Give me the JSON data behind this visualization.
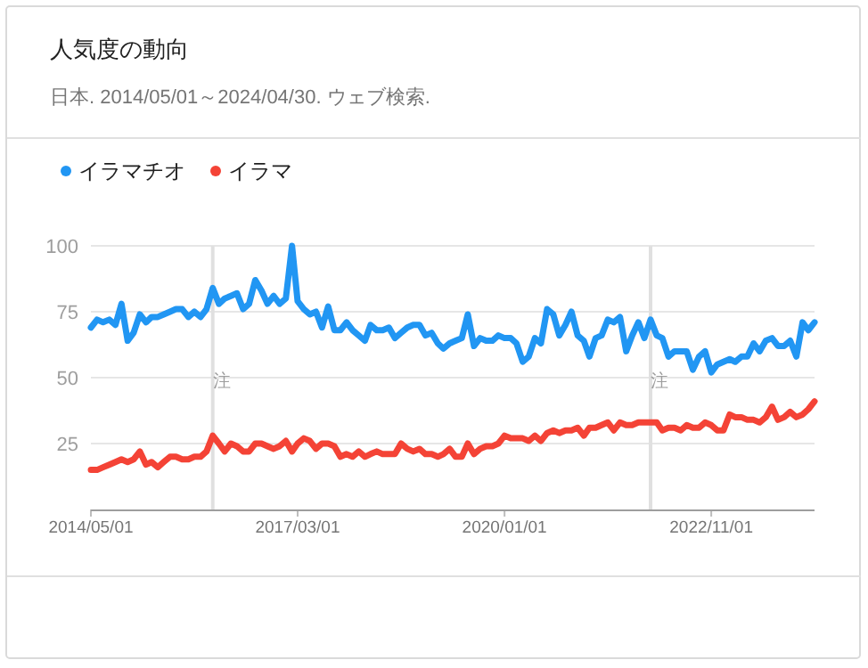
{
  "chart_data": {
    "type": "line",
    "title": "人気度の動向",
    "subtitle": "日本. 2014/05/01～2024/04/30. ウェブ検索.",
    "x": [
      "2014-05",
      "2014-06",
      "2014-07",
      "2014-08",
      "2014-09",
      "2014-10",
      "2014-11",
      "2014-12",
      "2015-01",
      "2015-02",
      "2015-03",
      "2015-04",
      "2015-05",
      "2015-06",
      "2015-07",
      "2015-08",
      "2015-09",
      "2015-10",
      "2015-11",
      "2015-12",
      "2016-01",
      "2016-02",
      "2016-03",
      "2016-04",
      "2016-05",
      "2016-06",
      "2016-07",
      "2016-08",
      "2016-09",
      "2016-10",
      "2016-11",
      "2016-12",
      "2017-01",
      "2017-02",
      "2017-03",
      "2017-04",
      "2017-05",
      "2017-06",
      "2017-07",
      "2017-08",
      "2017-09",
      "2017-10",
      "2017-11",
      "2017-12",
      "2018-01",
      "2018-02",
      "2018-03",
      "2018-04",
      "2018-05",
      "2018-06",
      "2018-07",
      "2018-08",
      "2018-09",
      "2018-10",
      "2018-11",
      "2018-12",
      "2019-01",
      "2019-02",
      "2019-03",
      "2019-04",
      "2019-05",
      "2019-06",
      "2019-07",
      "2019-08",
      "2019-09",
      "2019-10",
      "2019-11",
      "2019-12",
      "2020-01",
      "2020-02",
      "2020-03",
      "2020-04",
      "2020-05",
      "2020-06",
      "2020-07",
      "2020-08",
      "2020-09",
      "2020-10",
      "2020-11",
      "2020-12",
      "2021-01",
      "2021-02",
      "2021-03",
      "2021-04",
      "2021-05",
      "2021-06",
      "2021-07",
      "2021-08",
      "2021-09",
      "2021-10",
      "2021-11",
      "2021-12",
      "2022-01",
      "2022-02",
      "2022-03",
      "2022-04",
      "2022-05",
      "2022-06",
      "2022-07",
      "2022-08",
      "2022-09",
      "2022-10",
      "2022-11",
      "2022-12",
      "2023-01",
      "2023-02",
      "2023-03",
      "2023-04",
      "2023-05",
      "2023-06",
      "2023-07",
      "2023-08",
      "2023-09",
      "2023-10",
      "2023-11",
      "2023-12",
      "2024-01",
      "2024-02",
      "2024-03",
      "2024-04"
    ],
    "series": [
      {
        "name": "イラマチオ",
        "color": "#2196f3",
        "values": [
          69,
          72,
          71,
          72,
          70,
          78,
          64,
          67,
          74,
          71,
          73,
          73,
          74,
          75,
          76,
          76,
          73,
          75,
          73,
          76,
          84,
          78,
          80,
          81,
          82,
          76,
          78,
          87,
          83,
          78,
          81,
          78,
          80,
          100,
          79,
          76,
          74,
          75,
          69,
          77,
          68,
          68,
          71,
          68,
          66,
          64,
          70,
          68,
          68,
          69,
          65,
          67,
          69,
          70,
          70,
          66,
          67,
          63,
          61,
          63,
          64,
          65,
          74,
          62,
          65,
          64,
          64,
          66,
          65,
          65,
          63,
          56,
          58,
          65,
          63,
          76,
          74,
          66,
          70,
          75,
          66,
          64,
          58,
          65,
          66,
          72,
          71,
          73,
          60,
          66,
          71,
          65,
          72,
          66,
          65,
          58,
          60,
          60,
          60,
          53,
          58,
          60,
          52,
          55,
          56,
          57,
          56,
          58,
          58,
          63,
          60,
          64,
          65,
          62,
          62,
          64,
          58,
          71,
          68,
          71
        ]
      },
      {
        "name": "イラマ",
        "color": "#f44336",
        "values": [
          15,
          15,
          16,
          17,
          18,
          19,
          18,
          19,
          22,
          17,
          18,
          16,
          18,
          20,
          20,
          19,
          19,
          20,
          20,
          22,
          28,
          25,
          22,
          25,
          24,
          22,
          22,
          25,
          25,
          24,
          23,
          24,
          26,
          22,
          25,
          27,
          26,
          23,
          25,
          25,
          24,
          20,
          21,
          20,
          22,
          20,
          21,
          22,
          21,
          21,
          21,
          25,
          23,
          22,
          23,
          21,
          21,
          20,
          21,
          23,
          20,
          20,
          25,
          21,
          23,
          24,
          24,
          25,
          28,
          27,
          27,
          27,
          26,
          28,
          26,
          29,
          30,
          29,
          30,
          30,
          31,
          28,
          31,
          31,
          32,
          33,
          30,
          33,
          32,
          32,
          33,
          33,
          33,
          33,
          30,
          31,
          31,
          30,
          32,
          31,
          31,
          33,
          32,
          30,
          30,
          36,
          35,
          35,
          34,
          34,
          33,
          35,
          39,
          34,
          35,
          37,
          35,
          36,
          38,
          41
        ]
      }
    ],
    "xlim": [
      "2014-05",
      "2024-04"
    ],
    "xticks": [
      {
        "value": "2014-05-01",
        "label": "2014/05/01"
      },
      {
        "value": "2017-03-01",
        "label": "2017/03/01"
      },
      {
        "value": "2020-01-01",
        "label": "2020/01/01"
      },
      {
        "value": "2022-11-01",
        "label": "2022/11/01"
      }
    ],
    "ylim": [
      0,
      100
    ],
    "yticks": [
      25,
      50,
      75,
      100
    ],
    "grid": "y",
    "legend": "top left",
    "marker": "none",
    "line_style": "solid",
    "ref_lines": [
      {
        "axis": "x",
        "value": "2016-01",
        "label": "注",
        "color": "#e0e0e0"
      },
      {
        "axis": "x",
        "value": "2022-01",
        "label": "注",
        "color": "#e0e0e0"
      }
    ]
  }
}
